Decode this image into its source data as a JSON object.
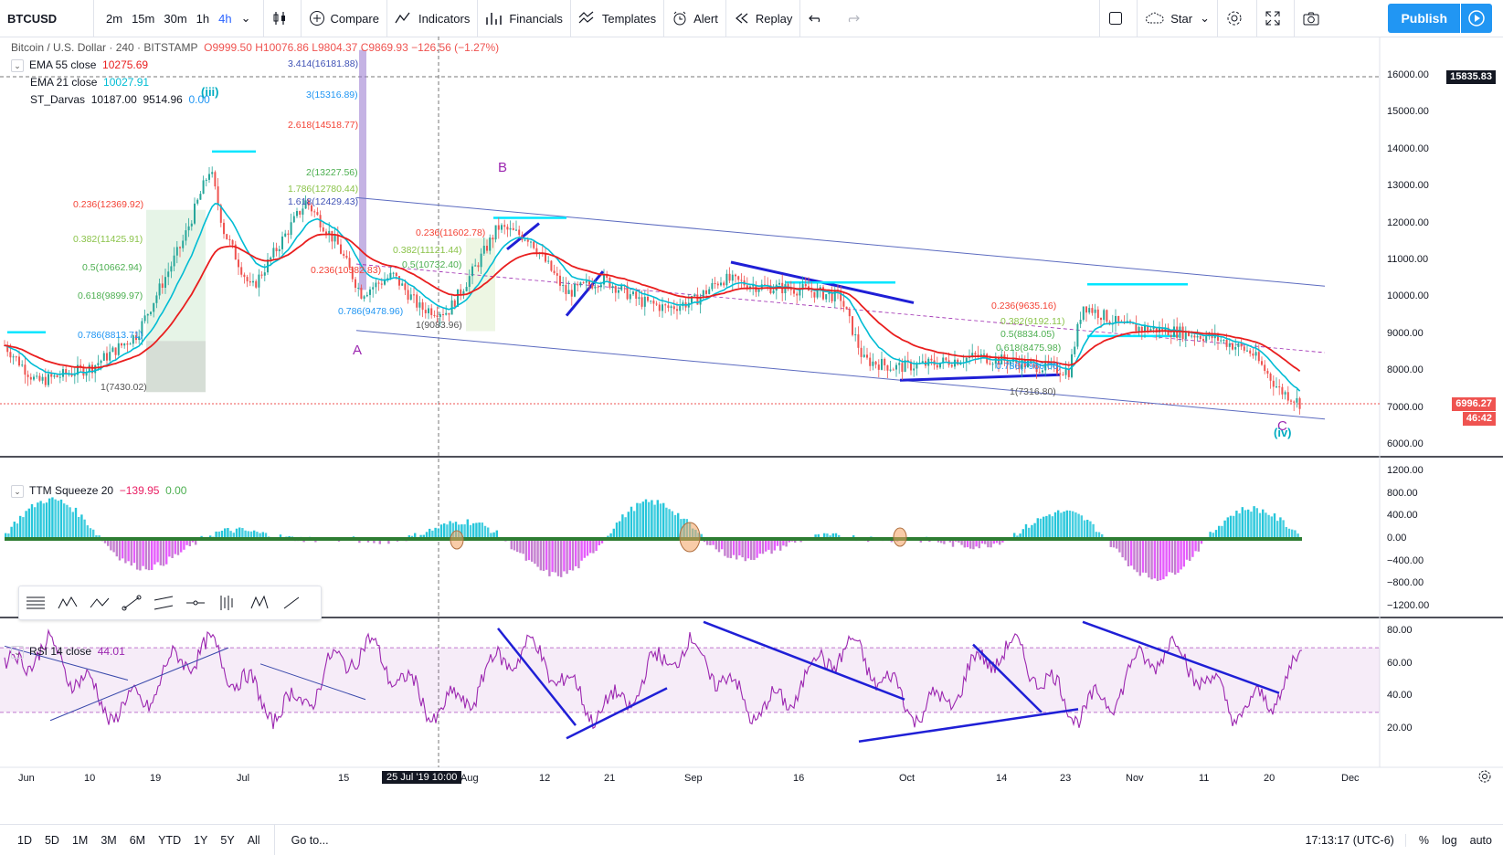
{
  "toolbar": {
    "symbol": "BTCUSD",
    "intervals": [
      "2m",
      "15m",
      "30m",
      "1h",
      "4h"
    ],
    "active_interval": "4h",
    "compare": "Compare",
    "indicators": "Indicators",
    "financials": "Financials",
    "templates": "Templates",
    "alert": "Alert",
    "replay": "Replay",
    "star": "Star",
    "publish": "Publish"
  },
  "colors": {
    "accent": "#2196f3",
    "up": "#26a69a",
    "down": "#ef5350",
    "ema55": "#e91e1e",
    "ema21": "#00bcd4",
    "rsi": "#9c27b0",
    "trend": "#1f1fd6"
  },
  "main_legend": {
    "title": "Bitcoin / U.S. Dollar · 240 · BITSTAMP",
    "o": "O9999.50",
    "h": "H10076.86",
    "l": "L9804.37",
    "c": "C9869.93",
    "chg": "−126.56 (−1.27%)",
    "ema55_label": "EMA 55 close",
    "ema55_val": "10275.69",
    "ema21_label": "EMA 21 close",
    "ema21_val": "10027.91",
    "darvas_label": "ST_Darvas",
    "darvas_v1": "10187.00",
    "darvas_v2": "9514.96",
    "darvas_v3": "0.00"
  },
  "price_axis": [
    "16000.00",
    "15000.00",
    "14000.00",
    "13000.00",
    "12000.00",
    "11000.00",
    "10000.00",
    "9000.00",
    "8000.00",
    "7000.00",
    "6000.00"
  ],
  "crosshair_price": "15835.83",
  "last_price": "6996.27",
  "countdown": "46:42",
  "ttm": {
    "label": "TTM Squeeze 20",
    "v1": "−139.95",
    "v2": "0.00",
    "axis": [
      "1200.00",
      "800.00",
      "400.00",
      "0.00",
      "−400.00",
      "−800.00",
      "−1200.00"
    ]
  },
  "rsi": {
    "label": "RSI 14 close",
    "value": "44.01",
    "axis": [
      "80.00",
      "60.00",
      "40.00",
      "20.00"
    ]
  },
  "time_axis": [
    "Jun",
    "10",
    "19",
    "Jul",
    "15",
    "Aug",
    "12",
    "21",
    "Sep",
    "16",
    "Oct",
    "14",
    "23",
    "Nov",
    "11",
    "20",
    "Dec"
  ],
  "crosshair_time": "25 Jul '19    10:00",
  "fib_labels": [
    {
      "t": "3.414(16181.88)",
      "c": "#3f51b5"
    },
    {
      "t": "3(15316.89)",
      "c": "#2196f3"
    },
    {
      "t": "2.618(14518.77)",
      "c": "#f44336"
    },
    {
      "t": "2(13227.56)",
      "c": "#4caf50"
    },
    {
      "t": "1.786(12780.44)",
      "c": "#8bc34a"
    },
    {
      "t": "1.618(12429.43)",
      "c": "#3f51b5"
    },
    {
      "t": "0.236(12369.92)",
      "c": "#f44336"
    },
    {
      "t": "0.382(11425.91)",
      "c": "#8bc34a"
    },
    {
      "t": "0.5(10662.94)",
      "c": "#4caf50"
    },
    {
      "t": "0.618(9899.97)",
      "c": "#4caf50"
    },
    {
      "t": "0.786(8813.71)",
      "c": "#2196f3"
    },
    {
      "t": "1(7430.02)",
      "c": "#555"
    },
    {
      "t": "0.236(11602.78)",
      "c": "#f44336"
    },
    {
      "t": "0.382(11121.44)",
      "c": "#8bc34a"
    },
    {
      "t": "0.5(10732.40)",
      "c": "#4caf50"
    },
    {
      "t": "0.236(10582.83)",
      "c": "#f44336"
    },
    {
      "t": "0.786(9478.96)",
      "c": "#2196f3"
    },
    {
      "t": "1(9083.96)",
      "c": "#555"
    },
    {
      "t": "0.236(9635.16)",
      "c": "#f44336"
    },
    {
      "t": "0.382(9192.11)",
      "c": "#8bc34a"
    },
    {
      "t": "0.5(8834.05)",
      "c": "#4caf50"
    },
    {
      "t": "0.618(8475.98)",
      "c": "#4caf50"
    },
    {
      "t": "0.786(7966.06)",
      "c": "#2196f3"
    },
    {
      "t": "1(7316.80)",
      "c": "#555"
    }
  ],
  "waves": {
    "iii": "(iii)",
    "iv": "(iv)",
    "A": "A",
    "B": "B",
    "C": "C"
  },
  "bottom": {
    "ranges": [
      "1D",
      "5D",
      "1M",
      "3M",
      "6M",
      "YTD",
      "1Y",
      "5Y",
      "All"
    ],
    "goto": "Go to...",
    "clock": "17:13:17 (UTC-6)",
    "pct": "%",
    "log": "log",
    "auto": "auto"
  }
}
